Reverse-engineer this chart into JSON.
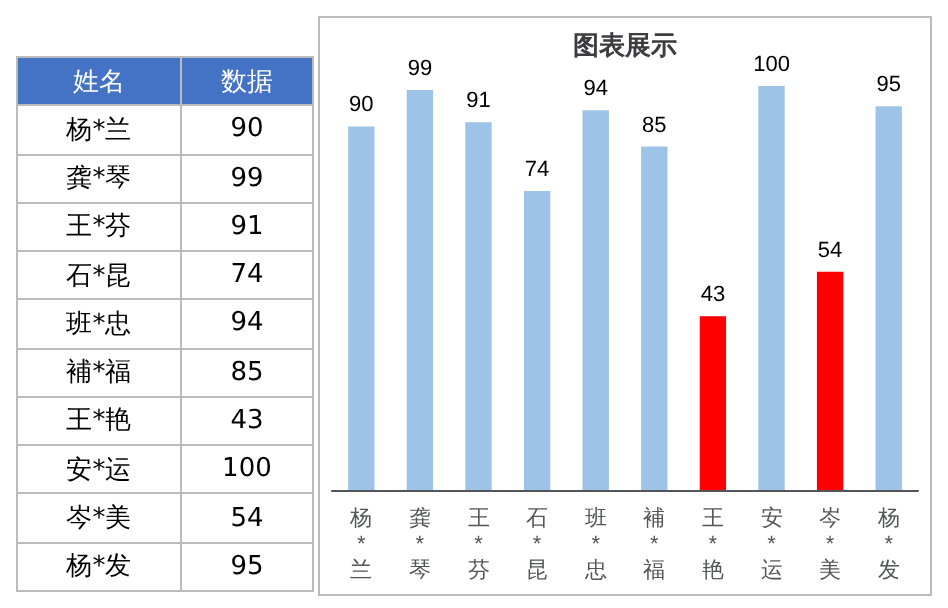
{
  "chart_data": {
    "type": "bar",
    "title": "图表展示",
    "categories": [
      "杨*兰",
      "龚*琴",
      "王*芬",
      "石*昆",
      "班*忠",
      "補*福",
      "王*艳",
      "安*运",
      "岑*美",
      "杨*发"
    ],
    "values": [
      90,
      99,
      91,
      74,
      94,
      85,
      43,
      100,
      54,
      95
    ],
    "colors": [
      "#9dc3e6",
      "#9dc3e6",
      "#9dc3e6",
      "#9dc3e6",
      "#9dc3e6",
      "#9dc3e6",
      "#ff0000",
      "#9dc3e6",
      "#ff0000",
      "#9dc3e6"
    ],
    "data_labels": true,
    "grid": false,
    "annotations": [
      "姓名",
      "数据",
      "杨*兰",
      "90",
      "龚*琴",
      "99",
      "王*芬",
      "91",
      "石*昆",
      "74",
      "班*忠",
      "94",
      "補*福",
      "85",
      "王*艳",
      "43",
      "安*运",
      "100",
      "岑*美",
      "54",
      "杨*发",
      "95"
    ]
  }
}
